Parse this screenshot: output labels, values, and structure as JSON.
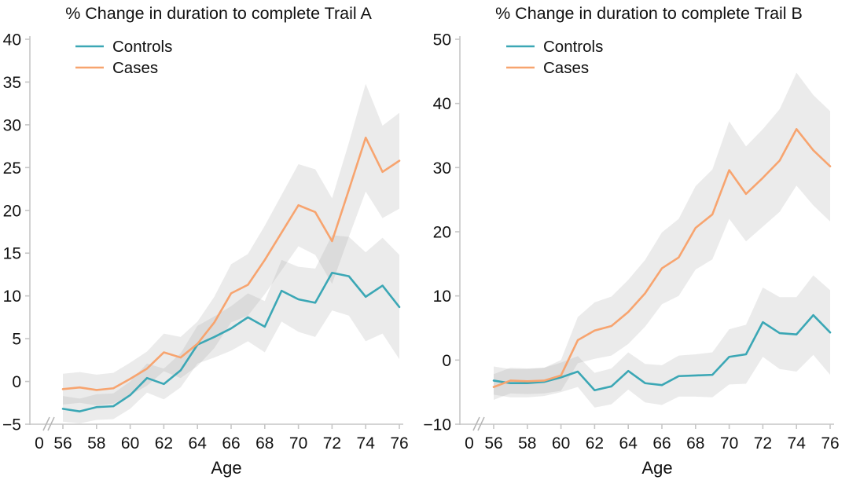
{
  "figure": {
    "background": "#ffffff",
    "colors": {
      "controls": "#3BA7B5",
      "cases": "#F7A46F",
      "band": "#9a9a9a",
      "band_opacity": 0.2,
      "axis": "#c6c6c6",
      "text": "#111111"
    },
    "legend_labels": {
      "controls": "Controls",
      "cases": "Cases"
    },
    "x_zero_label": "0",
    "x_axis_label": "Age"
  },
  "chart_data": [
    {
      "type": "line",
      "title": "% Change in duration to complete Trail A",
      "xlabel": "Age",
      "ylabel": "",
      "legend_position": "top-left",
      "grid": false,
      "axis_break": true,
      "x": [
        56,
        57,
        58,
        59,
        60,
        61,
        62,
        63,
        64,
        65,
        66,
        67,
        68,
        69,
        70,
        71,
        72,
        73,
        74,
        75,
        76
      ],
      "x_tick_labels": [
        56,
        58,
        60,
        62,
        64,
        66,
        68,
        70,
        72,
        74,
        76
      ],
      "ylim": [
        -5,
        40
      ],
      "y_ticks": [
        40,
        35,
        30,
        25,
        20,
        15,
        10,
        5,
        0,
        -5
      ],
      "series": [
        {
          "name": "Controls",
          "color": "#3BA7B5",
          "values": [
            -3.2,
            -3.5,
            -3.0,
            -2.9,
            -1.6,
            0.4,
            -0.3,
            1.3,
            4.3,
            5.2,
            6.2,
            7.5,
            6.4,
            10.6,
            9.6,
            9.2,
            12.7,
            12.3,
            9.9,
            11.2,
            8.7
          ],
          "band_lower": [
            -4.7,
            -4.9,
            -4.5,
            -4.4,
            -3.2,
            -1.3,
            -2.1,
            -0.7,
            2.1,
            2.8,
            3.6,
            4.7,
            3.4,
            7.0,
            5.8,
            5.2,
            8.3,
            7.7,
            4.7,
            5.6,
            2.6
          ],
          "band_upper": [
            -1.7,
            -2.0,
            -1.5,
            -1.4,
            0.0,
            2.1,
            1.5,
            3.3,
            6.5,
            7.6,
            8.8,
            10.3,
            9.4,
            14.2,
            13.4,
            13.2,
            17.1,
            16.9,
            15.1,
            16.8,
            14.8
          ]
        },
        {
          "name": "Cases",
          "color": "#F7A46F",
          "values": [
            -0.9,
            -0.7,
            -1.0,
            -0.8,
            0.3,
            1.5,
            3.4,
            2.8,
            4.4,
            6.9,
            10.3,
            11.3,
            14.2,
            17.4,
            20.6,
            19.8,
            16.4,
            22.4,
            28.5,
            24.5,
            25.8
          ],
          "band_lower": [
            -2.7,
            -2.5,
            -2.8,
            -2.6,
            -1.6,
            -0.5,
            1.2,
            0.4,
            1.8,
            3.9,
            6.9,
            7.7,
            10.2,
            13.0,
            15.8,
            14.8,
            11.4,
            16.9,
            22.2,
            19.1,
            20.2
          ],
          "band_upper": [
            0.9,
            1.1,
            0.8,
            1.0,
            2.2,
            3.5,
            5.6,
            5.2,
            7.0,
            9.9,
            13.7,
            14.9,
            18.2,
            21.8,
            25.4,
            24.8,
            21.4,
            27.9,
            34.8,
            29.9,
            31.4
          ]
        }
      ]
    },
    {
      "type": "line",
      "title": "% Change in duration to complete Trail B",
      "xlabel": "Age",
      "ylabel": "",
      "legend_position": "top-left",
      "grid": false,
      "axis_break": true,
      "x": [
        56,
        57,
        58,
        59,
        60,
        61,
        62,
        63,
        64,
        65,
        66,
        67,
        68,
        69,
        70,
        71,
        72,
        73,
        74,
        75,
        76
      ],
      "x_tick_labels": [
        56,
        58,
        60,
        62,
        64,
        66,
        68,
        70,
        72,
        74,
        76
      ],
      "ylim": [
        -10,
        50
      ],
      "y_ticks": [
        50,
        40,
        30,
        20,
        10,
        0,
        -10
      ],
      "series": [
        {
          "name": "Controls",
          "color": "#3BA7B5",
          "values": [
            -3.2,
            -3.6,
            -3.6,
            -3.4,
            -2.7,
            -1.8,
            -4.7,
            -4.1,
            -1.7,
            -3.6,
            -3.9,
            -2.5,
            -2.4,
            -2.3,
            0.5,
            0.9,
            5.9,
            4.2,
            4.0,
            7.0,
            4.3
          ],
          "band_lower": [
            -5.4,
            -5.8,
            -5.8,
            -5.6,
            -5.0,
            -4.2,
            -7.4,
            -6.9,
            -4.6,
            -6.6,
            -7.0,
            -5.7,
            -5.7,
            -5.8,
            -3.8,
            -3.7,
            0.5,
            -1.4,
            -1.8,
            0.8,
            -2.3
          ],
          "band_upper": [
            -1.0,
            -1.4,
            -1.4,
            -1.2,
            -0.4,
            0.6,
            -2.0,
            -1.3,
            1.2,
            -0.6,
            -0.8,
            0.7,
            0.9,
            1.2,
            4.8,
            5.5,
            11.3,
            9.8,
            9.8,
            13.2,
            10.9
          ]
        },
        {
          "name": "Cases",
          "color": "#F7A46F",
          "values": [
            -4.2,
            -3.2,
            -3.3,
            -3.2,
            -2.4,
            3.1,
            4.6,
            5.3,
            7.5,
            10.4,
            14.3,
            16.0,
            20.6,
            22.7,
            29.6,
            25.9,
            28.4,
            31.1,
            36.0,
            32.7,
            30.2
          ],
          "band_lower": [
            -6.2,
            -5.2,
            -5.3,
            -5.2,
            -4.8,
            -0.5,
            0.2,
            0.7,
            2.5,
            5.2,
            8.7,
            10.0,
            14.1,
            15.7,
            22.0,
            18.5,
            20.8,
            23.1,
            27.2,
            24.1,
            21.6
          ],
          "band_upper": [
            -2.2,
            -1.2,
            -1.3,
            -1.2,
            0.0,
            6.7,
            9.0,
            9.9,
            12.5,
            15.6,
            19.9,
            22.0,
            27.1,
            29.7,
            37.2,
            33.3,
            36.0,
            39.1,
            44.8,
            41.3,
            38.8
          ]
        }
      ]
    }
  ]
}
